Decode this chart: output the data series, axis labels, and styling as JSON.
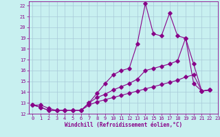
{
  "xlabel": "Windchill (Refroidissement éolien,°C)",
  "bg_color": "#c8f0f0",
  "grid_color": "#a8c8d8",
  "line_color": "#880088",
  "xlim": [
    -0.5,
    23
  ],
  "ylim": [
    12,
    22.4
  ],
  "xticks": [
    0,
    1,
    2,
    3,
    4,
    5,
    6,
    7,
    8,
    9,
    10,
    11,
    12,
    13,
    14,
    15,
    16,
    17,
    18,
    19,
    20,
    21,
    22,
    23
  ],
  "yticks": [
    12,
    13,
    14,
    15,
    16,
    17,
    18,
    19,
    20,
    21,
    22
  ],
  "line1_x": [
    0,
    1,
    2,
    3,
    4,
    5,
    6,
    7,
    8,
    9,
    10,
    11,
    12,
    13,
    14,
    15,
    16,
    17,
    18,
    19,
    20,
    21,
    22
  ],
  "line1_y": [
    12.8,
    12.8,
    12.5,
    12.3,
    12.3,
    12.3,
    12.3,
    13.0,
    13.9,
    14.8,
    15.6,
    16.0,
    16.2,
    18.5,
    22.2,
    19.4,
    19.2,
    21.3,
    19.2,
    19.0,
    14.8,
    14.1,
    14.2
  ],
  "line2_x": [
    0,
    1,
    2,
    3,
    4,
    5,
    6,
    7,
    8,
    9,
    10,
    11,
    12,
    13,
    14,
    15,
    16,
    17,
    18,
    19,
    20,
    21,
    22
  ],
  "line2_y": [
    12.8,
    12.6,
    12.3,
    12.3,
    12.3,
    12.3,
    12.3,
    13.0,
    13.5,
    13.8,
    14.2,
    14.5,
    14.8,
    15.2,
    16.0,
    16.2,
    16.4,
    16.6,
    16.9,
    19.0,
    16.6,
    14.1,
    14.2
  ],
  "line3_x": [
    0,
    1,
    2,
    3,
    4,
    5,
    6,
    7,
    8,
    9,
    10,
    11,
    12,
    13,
    14,
    15,
    16,
    17,
    18,
    19,
    20,
    21,
    22
  ],
  "line3_y": [
    12.8,
    12.6,
    12.3,
    12.3,
    12.3,
    12.3,
    12.3,
    12.8,
    13.1,
    13.3,
    13.5,
    13.7,
    13.9,
    14.1,
    14.3,
    14.5,
    14.7,
    14.9,
    15.1,
    15.4,
    15.6,
    14.1,
    14.2
  ]
}
